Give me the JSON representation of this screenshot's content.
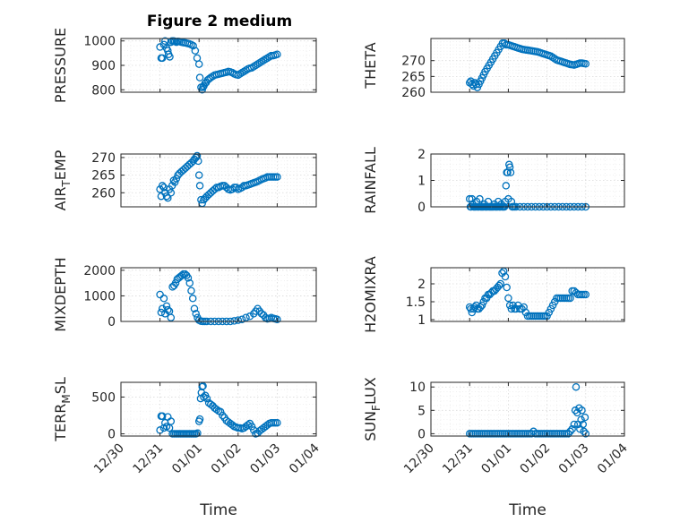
{
  "figure_title": "Figure 2 medium",
  "chart_data": [
    {
      "type": "scatter",
      "ylabel": "PRESSURE",
      "xlabel": "",
      "ylim": [
        790,
        1010
      ],
      "yticks": [
        800,
        900,
        1000
      ],
      "xlim": [
        0,
        5
      ],
      "x": [
        1.0,
        1.03,
        1.06,
        1.1,
        1.13,
        1.17,
        1.2,
        1.22,
        1.25,
        1.28,
        1.31,
        1.35,
        1.38,
        1.42,
        1.46,
        1.5,
        1.55,
        1.6,
        1.65,
        1.7,
        1.75,
        1.8,
        1.85,
        1.9,
        1.95,
        2.0,
        2.02,
        2.05,
        2.08,
        2.1,
        2.12,
        2.15,
        2.18,
        2.22,
        2.26,
        2.3,
        2.35,
        2.4,
        2.45,
        2.5,
        2.55,
        2.6,
        2.65,
        2.7,
        2.75,
        2.8,
        2.85,
        2.9,
        2.95,
        3.0,
        3.05,
        3.1,
        3.15,
        3.2,
        3.25,
        3.3,
        3.35,
        3.4,
        3.45,
        3.5,
        3.55,
        3.6,
        3.65,
        3.7,
        3.75,
        3.8,
        3.85,
        3.9,
        3.95,
        4.0
      ],
      "y": [
        975,
        930,
        930,
        985,
        1000,
        970,
        960,
        945,
        935,
        995,
        1000,
        1000,
        998,
        995,
        998,
        997,
        995,
        993,
        992,
        990,
        988,
        985,
        980,
        960,
        930,
        905,
        850,
        810,
        800,
        810,
        815,
        825,
        830,
        840,
        845,
        850,
        855,
        860,
        862,
        864,
        866,
        868,
        870,
        872,
        875,
        873,
        870,
        865,
        862,
        860,
        865,
        870,
        875,
        880,
        885,
        888,
        890,
        895,
        900,
        905,
        910,
        915,
        920,
        925,
        930,
        935,
        940,
        940,
        942,
        945
      ]
    },
    {
      "type": "scatter",
      "ylabel": "THETA",
      "xlabel": "",
      "ylim": [
        260,
        277
      ],
      "yticks": [
        260,
        265,
        270
      ],
      "xlim": [
        0,
        5
      ],
      "x": [
        1.0,
        1.03,
        1.06,
        1.1,
        1.13,
        1.17,
        1.2,
        1.24,
        1.28,
        1.32,
        1.36,
        1.4,
        1.45,
        1.5,
        1.55,
        1.6,
        1.65,
        1.7,
        1.75,
        1.8,
        1.85,
        1.9,
        1.95,
        2.0,
        2.05,
        2.1,
        2.15,
        2.2,
        2.25,
        2.3,
        2.35,
        2.4,
        2.45,
        2.5,
        2.55,
        2.6,
        2.65,
        2.7,
        2.75,
        2.8,
        2.85,
        2.9,
        2.95,
        3.0,
        3.05,
        3.1,
        3.15,
        3.2,
        3.25,
        3.3,
        3.35,
        3.4,
        3.45,
        3.5,
        3.55,
        3.6,
        3.65,
        3.7,
        3.75,
        3.8,
        3.85,
        3.9,
        3.95,
        4.0
      ],
      "y": [
        263,
        263.5,
        262.5,
        262,
        263,
        262.5,
        261.5,
        262.5,
        263.5,
        264.5,
        265.5,
        266.5,
        267.5,
        268.5,
        269.5,
        270.5,
        271.5,
        272.5,
        273.5,
        274.5,
        275.5,
        275.5,
        275,
        275,
        274.8,
        274.6,
        274.4,
        274.2,
        274,
        273.8,
        273.6,
        273.5,
        273.4,
        273.3,
        273.2,
        273.1,
        273,
        272.9,
        272.8,
        272.6,
        272.4,
        272.2,
        272,
        271.8,
        271.6,
        271.4,
        271,
        270.6,
        270.2,
        270,
        269.8,
        269.6,
        269.4,
        269.2,
        269,
        268.8,
        268.7,
        268.6,
        268.8,
        269,
        269.2,
        269.2,
        269.1,
        269
      ]
    },
    {
      "type": "scatter",
      "ylabel": "AIR_TEMP",
      "xlabel": "",
      "ylim": [
        256,
        271
      ],
      "yticks": [
        260,
        265,
        270
      ],
      "xlim": [
        0,
        5
      ],
      "x": [
        1.0,
        1.03,
        1.06,
        1.1,
        1.13,
        1.17,
        1.2,
        1.24,
        1.28,
        1.31,
        1.35,
        1.38,
        1.42,
        1.46,
        1.5,
        1.55,
        1.6,
        1.65,
        1.7,
        1.75,
        1.8,
        1.85,
        1.88,
        1.92,
        1.95,
        1.98,
        2.0,
        2.02,
        2.05,
        2.08,
        2.12,
        2.16,
        2.2,
        2.25,
        2.3,
        2.35,
        2.4,
        2.45,
        2.5,
        2.55,
        2.6,
        2.65,
        2.7,
        2.75,
        2.8,
        2.85,
        2.9,
        2.95,
        3.0,
        3.05,
        3.1,
        3.15,
        3.2,
        3.25,
        3.3,
        3.35,
        3.4,
        3.45,
        3.5,
        3.55,
        3.6,
        3.65,
        3.7,
        3.75,
        3.8,
        3.85,
        3.9,
        3.95,
        4.0
      ],
      "y": [
        261,
        259,
        262,
        261.5,
        260,
        259,
        258.5,
        261,
        260,
        262,
        263.5,
        263,
        264,
        265,
        265.5,
        266,
        266.5,
        267,
        267.5,
        268,
        268.5,
        269,
        269.5,
        270,
        270.5,
        269,
        265,
        262,
        258,
        257,
        258,
        258.5,
        259,
        259.5,
        260,
        260.5,
        261,
        261.5,
        261.5,
        261.8,
        262,
        262,
        261.5,
        261,
        260.8,
        261,
        261.5,
        261.5,
        261,
        261.2,
        261.5,
        262,
        262,
        262.2,
        262.4,
        262.6,
        262.8,
        263,
        263.2,
        263.5,
        263.8,
        264,
        264.2,
        264.5,
        264.5,
        264.5,
        264.5,
        264.5,
        264.5
      ]
    },
    {
      "type": "scatter",
      "ylabel": "RAINFALL",
      "xlabel": "",
      "ylim": [
        0,
        2
      ],
      "yticks": [
        0,
        1,
        2
      ],
      "xlim": [
        0,
        5
      ],
      "x": [
        1.0,
        1.02,
        1.04,
        1.06,
        1.08,
        1.1,
        1.12,
        1.14,
        1.16,
        1.18,
        1.2,
        1.22,
        1.24,
        1.26,
        1.28,
        1.3,
        1.32,
        1.34,
        1.36,
        1.38,
        1.4,
        1.42,
        1.44,
        1.46,
        1.48,
        1.5,
        1.52,
        1.54,
        1.56,
        1.58,
        1.6,
        1.62,
        1.64,
        1.66,
        1.68,
        1.7,
        1.72,
        1.74,
        1.76,
        1.78,
        1.8,
        1.82,
        1.84,
        1.86,
        1.88,
        1.9,
        1.92,
        1.94,
        1.96,
        1.98,
        2.0,
        2.02,
        2.04,
        2.06,
        2.08,
        2.1,
        2.12,
        2.16,
        2.2,
        2.3,
        2.4,
        2.5,
        2.6,
        2.7,
        2.8,
        2.9,
        3.0,
        3.1,
        3.2,
        3.3,
        3.4,
        3.5,
        3.6,
        3.7,
        3.8,
        3.9,
        4.0
      ],
      "y": [
        0.3,
        0,
        0,
        0.3,
        0.1,
        0,
        0,
        0,
        0,
        0.2,
        0,
        0,
        0,
        0.3,
        0,
        0,
        0,
        0,
        0,
        0.1,
        0,
        0,
        0,
        0,
        0.2,
        0,
        0,
        0,
        0,
        0,
        0,
        0,
        0.1,
        0,
        0,
        0,
        0,
        0.2,
        0,
        0,
        0,
        0.1,
        0,
        0,
        0,
        0,
        0.2,
        0.8,
        1.3,
        1.3,
        0.3,
        1.6,
        1.5,
        1.3,
        0.2,
        0,
        0,
        0,
        0,
        0,
        0,
        0,
        0,
        0,
        0,
        0,
        0,
        0,
        0,
        0,
        0,
        0,
        0,
        0,
        0,
        0,
        0
      ]
    },
    {
      "type": "scatter",
      "ylabel": "MIXDEPTH",
      "xlabel": "",
      "ylim": [
        0,
        2100
      ],
      "yticks": [
        0,
        1000,
        2000
      ],
      "xlim": [
        0,
        5
      ],
      "x": [
        1.0,
        1.03,
        1.06,
        1.1,
        1.13,
        1.17,
        1.2,
        1.24,
        1.28,
        1.32,
        1.36,
        1.4,
        1.44,
        1.48,
        1.52,
        1.56,
        1.6,
        1.64,
        1.68,
        1.72,
        1.76,
        1.8,
        1.84,
        1.88,
        1.92,
        1.96,
        2.0,
        2.05,
        2.1,
        2.15,
        2.2,
        2.3,
        2.4,
        2.5,
        2.6,
        2.7,
        2.8,
        2.9,
        3.0,
        3.1,
        3.2,
        3.3,
        3.4,
        3.45,
        3.5,
        3.55,
        3.6,
        3.65,
        3.7,
        3.75,
        3.8,
        3.85,
        3.9,
        3.95,
        4.0
      ],
      "y": [
        1050,
        350,
        500,
        900,
        300,
        600,
        450,
        400,
        150,
        1350,
        1400,
        1500,
        1650,
        1700,
        1750,
        1800,
        1850,
        1850,
        1800,
        1700,
        1500,
        1200,
        900,
        500,
        300,
        150,
        50,
        10,
        0,
        0,
        0,
        0,
        0,
        0,
        0,
        0,
        0,
        20,
        50,
        80,
        150,
        200,
        300,
        400,
        500,
        400,
        300,
        250,
        150,
        100,
        120,
        150,
        120,
        100,
        80
      ]
    },
    {
      "type": "scatter",
      "ylabel": "H2OMIXRA",
      "xlabel": "",
      "ylim": [
        0.95,
        2.45
      ],
      "yticks": [
        1,
        1.5,
        2
      ],
      "xlim": [
        0,
        5
      ],
      "x": [
        1.0,
        1.03,
        1.06,
        1.1,
        1.13,
        1.17,
        1.2,
        1.24,
        1.28,
        1.32,
        1.36,
        1.4,
        1.44,
        1.48,
        1.52,
        1.56,
        1.6,
        1.64,
        1.68,
        1.72,
        1.76,
        1.8,
        1.84,
        1.88,
        1.92,
        1.96,
        2.0,
        2.04,
        2.08,
        2.12,
        2.16,
        2.2,
        2.25,
        2.3,
        2.35,
        2.4,
        2.45,
        2.5,
        2.55,
        2.6,
        2.65,
        2.7,
        2.75,
        2.8,
        2.85,
        2.9,
        2.95,
        3.0,
        3.05,
        3.1,
        3.15,
        3.2,
        3.25,
        3.3,
        3.35,
        3.4,
        3.45,
        3.5,
        3.55,
        3.6,
        3.65,
        3.7,
        3.75,
        3.8,
        3.85,
        3.9,
        3.95,
        4.0
      ],
      "y": [
        1.35,
        1.3,
        1.2,
        1.3,
        1.35,
        1.4,
        1.3,
        1.3,
        1.35,
        1.4,
        1.5,
        1.6,
        1.6,
        1.7,
        1.7,
        1.75,
        1.8,
        1.8,
        1.85,
        1.9,
        1.95,
        2.0,
        2.3,
        2.35,
        2.2,
        1.9,
        1.6,
        1.4,
        1.3,
        1.4,
        1.3,
        1.3,
        1.4,
        1.3,
        1.3,
        1.35,
        1.2,
        1.1,
        1.1,
        1.1,
        1.1,
        1.1,
        1.1,
        1.1,
        1.1,
        1.1,
        1.1,
        1.1,
        1.2,
        1.3,
        1.4,
        1.5,
        1.6,
        1.6,
        1.6,
        1.6,
        1.6,
        1.6,
        1.6,
        1.6,
        1.8,
        1.8,
        1.75,
        1.7,
        1.7,
        1.7,
        1.7,
        1.7
      ]
    },
    {
      "type": "scatter",
      "ylabel": "TERR_MSL",
      "xlabel": "Time",
      "ylim": [
        -30,
        700
      ],
      "yticks": [
        0,
        500
      ],
      "xlim": [
        0,
        5
      ],
      "xticklabels": [
        "12/30",
        "12/31",
        "01/01",
        "01/02",
        "01/03",
        "01/04"
      ],
      "x": [
        1.0,
        1.03,
        1.06,
        1.1,
        1.13,
        1.17,
        1.2,
        1.24,
        1.28,
        1.32,
        1.36,
        1.4,
        1.44,
        1.48,
        1.52,
        1.56,
        1.6,
        1.64,
        1.68,
        1.72,
        1.76,
        1.8,
        1.84,
        1.88,
        1.92,
        1.96,
        2.0,
        2.02,
        2.04,
        2.06,
        2.08,
        2.1,
        2.12,
        2.16,
        2.2,
        2.25,
        2.3,
        2.35,
        2.4,
        2.45,
        2.5,
        2.55,
        2.6,
        2.65,
        2.7,
        2.75,
        2.8,
        2.85,
        2.9,
        2.95,
        3.0,
        3.05,
        3.1,
        3.15,
        3.2,
        3.25,
        3.3,
        3.35,
        3.4,
        3.45,
        3.5,
        3.55,
        3.6,
        3.65,
        3.7,
        3.75,
        3.8,
        3.85,
        3.9,
        3.95,
        4.0
      ],
      "y": [
        50,
        240,
        240,
        80,
        150,
        100,
        230,
        80,
        170,
        0,
        0,
        0,
        0,
        0,
        0,
        0,
        0,
        0,
        0,
        0,
        0,
        0,
        0,
        0,
        0,
        10,
        170,
        200,
        480,
        560,
        640,
        650,
        500,
        520,
        480,
        420,
        400,
        380,
        350,
        330,
        310,
        300,
        250,
        220,
        180,
        160,
        140,
        120,
        100,
        90,
        80,
        80,
        70,
        80,
        100,
        120,
        140,
        100,
        50,
        0,
        10,
        40,
        60,
        80,
        100,
        120,
        140,
        150,
        150,
        150,
        150
      ]
    },
    {
      "type": "scatter",
      "ylabel": "SUN_FLUX",
      "xlabel": "Time",
      "ylim": [
        -0.5,
        11
      ],
      "yticks": [
        0,
        5,
        10
      ],
      "xlim": [
        0,
        5
      ],
      "xticklabels": [
        "12/30",
        "12/31",
        "01/01",
        "01/02",
        "01/03",
        "01/04"
      ],
      "x": [
        1.0,
        1.05,
        1.1,
        1.15,
        1.2,
        1.25,
        1.3,
        1.35,
        1.4,
        1.45,
        1.5,
        1.55,
        1.6,
        1.65,
        1.7,
        1.75,
        1.8,
        1.85,
        1.9,
        1.95,
        2.0,
        2.05,
        2.1,
        2.15,
        2.2,
        2.25,
        2.3,
        2.35,
        2.4,
        2.45,
        2.5,
        2.55,
        2.6,
        2.65,
        2.7,
        2.75,
        2.8,
        2.85,
        2.9,
        2.95,
        3.0,
        3.05,
        3.1,
        3.15,
        3.2,
        3.25,
        3.3,
        3.35,
        3.4,
        3.45,
        3.5,
        3.55,
        3.6,
        3.65,
        3.7,
        3.73,
        3.75,
        3.78,
        3.8,
        3.83,
        3.85,
        3.88,
        3.9,
        3.93,
        3.95,
        3.98,
        4.0
      ],
      "y": [
        0,
        0,
        0,
        0,
        0,
        0,
        0,
        0,
        0,
        0,
        0,
        0,
        0,
        0,
        0,
        0,
        0,
        0,
        0,
        0,
        0,
        0,
        0,
        0,
        0,
        0,
        0,
        0,
        0,
        0,
        0,
        0,
        0,
        0.5,
        0,
        0,
        0,
        0,
        0,
        0,
        0,
        0,
        0,
        0,
        0,
        0,
        0,
        0,
        0,
        0,
        0,
        0,
        0.5,
        1,
        2,
        5,
        10,
        4.5,
        2,
        5.5,
        1,
        3,
        5,
        2,
        0.5,
        3.5,
        0
      ]
    }
  ]
}
